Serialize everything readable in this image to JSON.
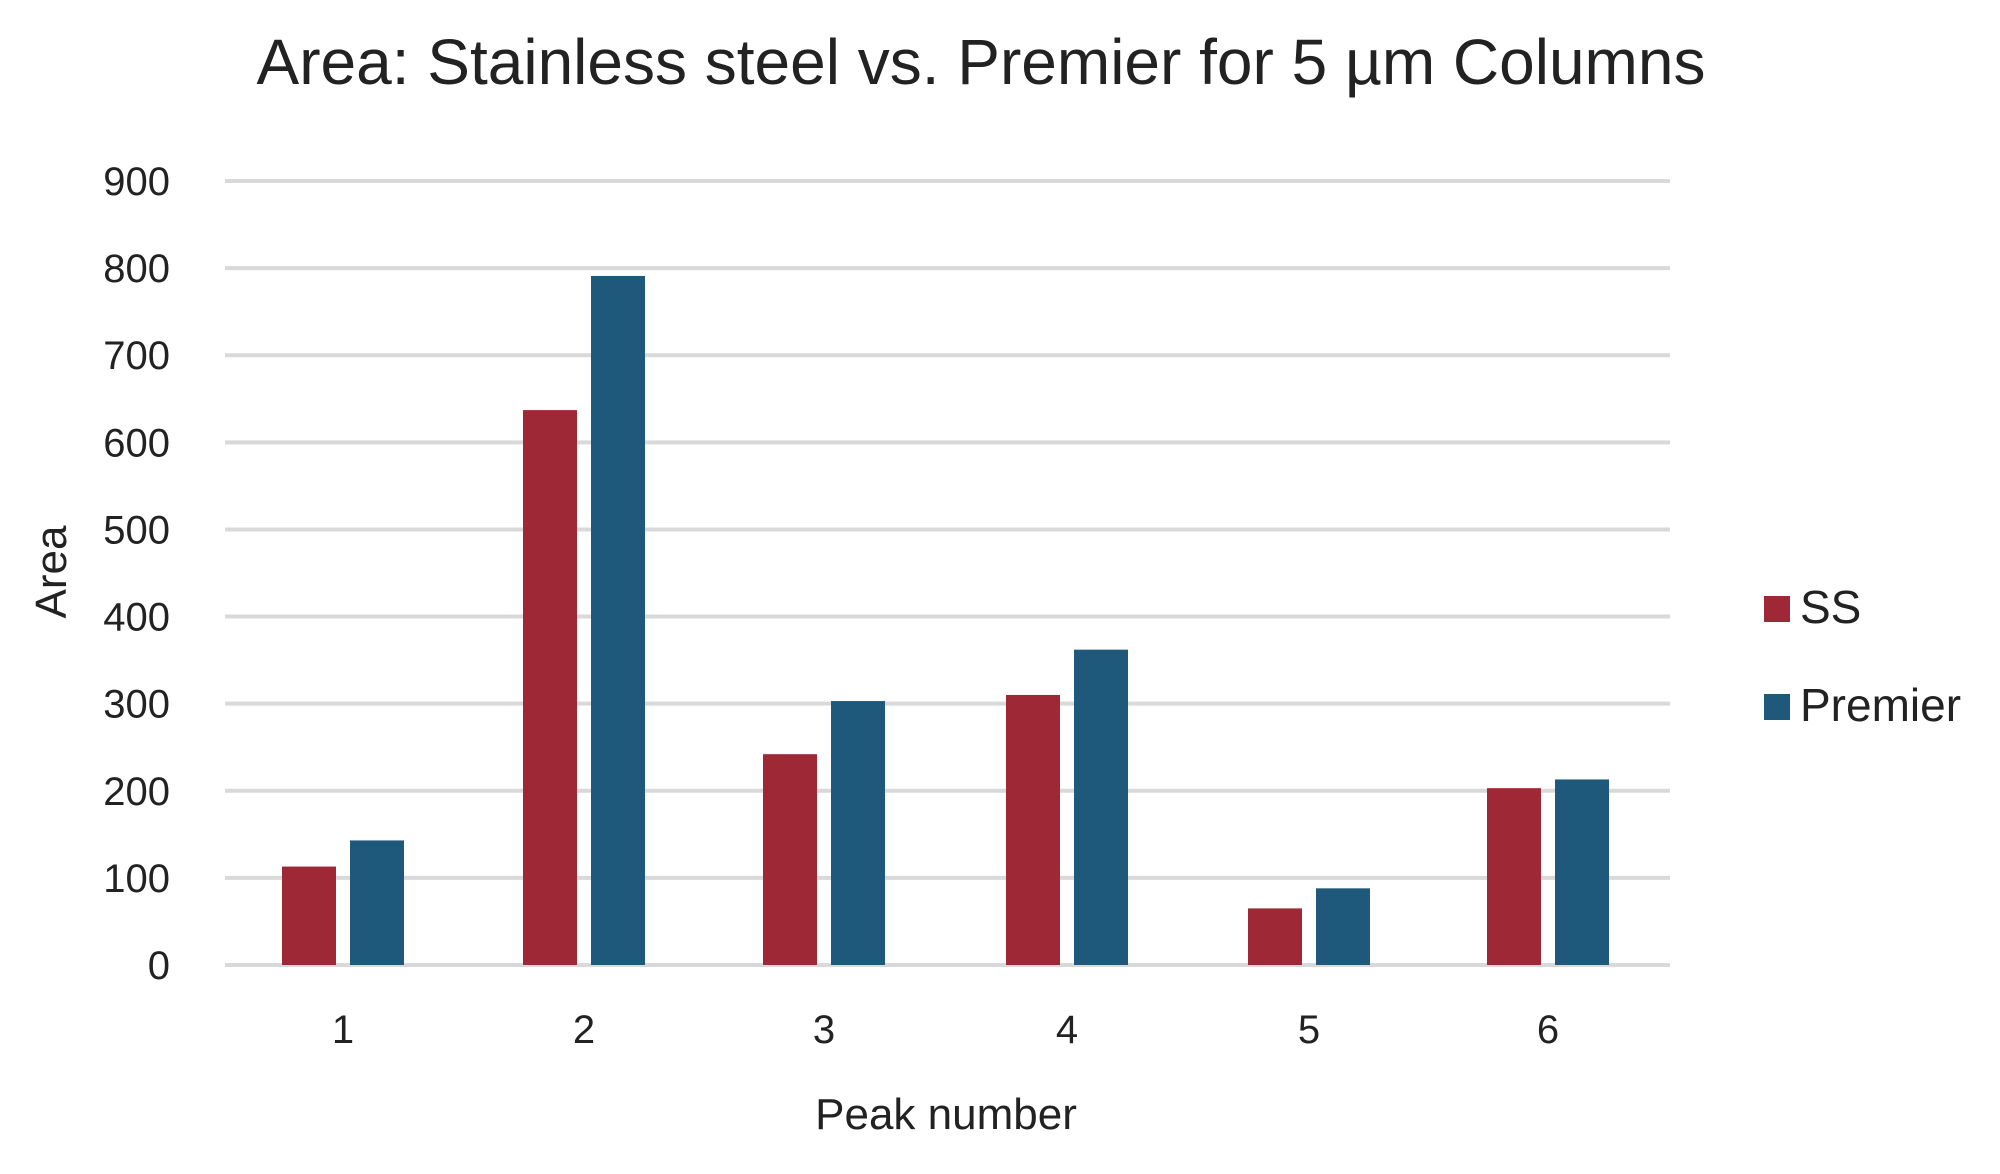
{
  "chart_data": {
    "type": "bar",
    "title": "Area: Stainless steel vs. Premier for 5 µm Columns",
    "xlabel": "Peak number",
    "ylabel": "Area",
    "categories": [
      "1",
      "2",
      "3",
      "4",
      "5",
      "6"
    ],
    "ylim": [
      0,
      900
    ],
    "yticks": [
      0,
      100,
      200,
      300,
      400,
      500,
      600,
      700,
      800,
      900
    ],
    "ytick_labels": [
      "0",
      "100",
      "200",
      "300",
      "400",
      "500",
      "600",
      "700",
      "800",
      "900"
    ],
    "grid": true,
    "legend_position": "right",
    "series": [
      {
        "name": "SS",
        "color": "#9e2836",
        "values": [
          113,
          637,
          242,
          310,
          65,
          203
        ]
      },
      {
        "name": "Premier",
        "color": "#1e587a",
        "values": [
          143,
          791,
          303,
          362,
          88,
          213
        ]
      }
    ]
  }
}
